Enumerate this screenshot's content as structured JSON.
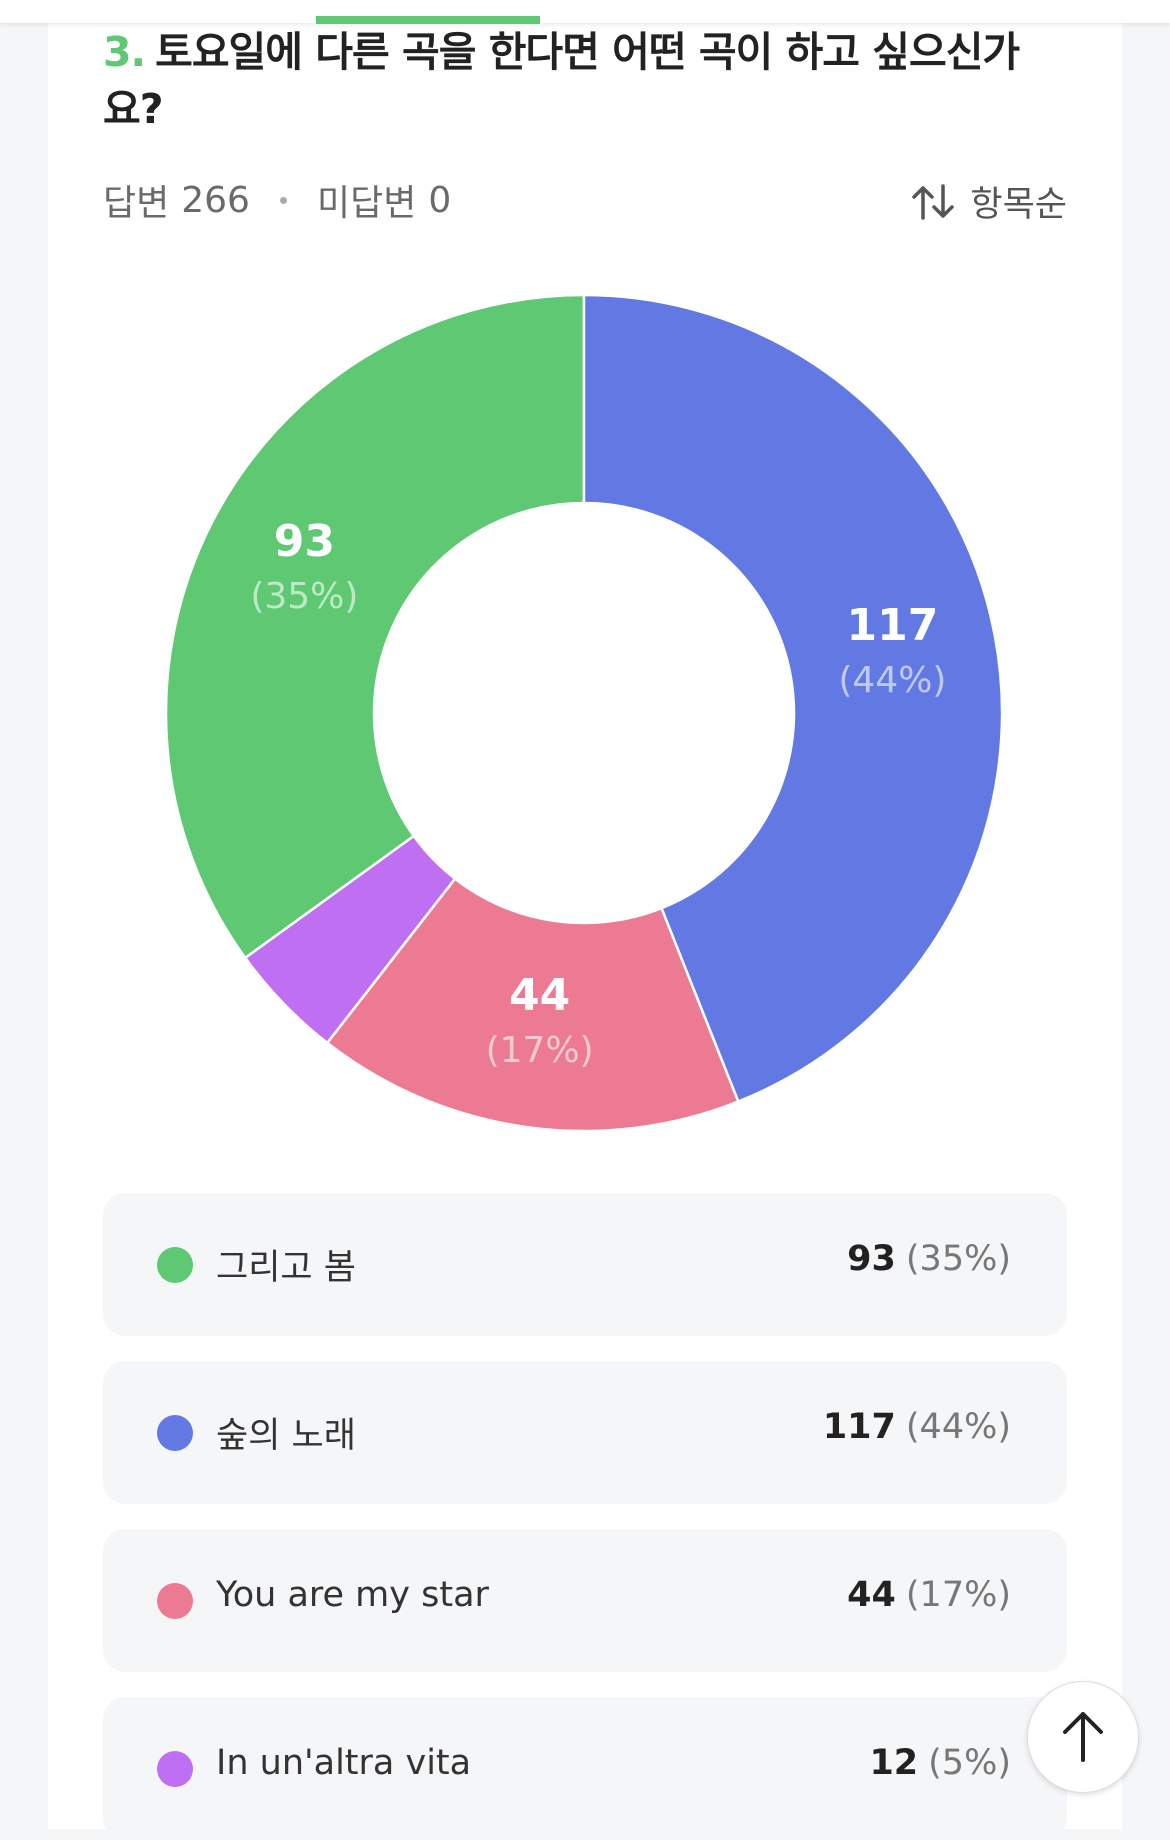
{
  "question": {
    "number": "3.",
    "title": "토요일에 다른 곡을 한다면 어떤 곡이 하고 싶으신가요?",
    "answered_label": "답변",
    "answered": 266,
    "unanswered_label": "미답변",
    "unanswered": 0,
    "sort_label": "항목순"
  },
  "chart_data": {
    "type": "donut",
    "categories": [
      "그리고 봄",
      "숲의 노래",
      "You are my star",
      "In un'altra vita"
    ],
    "values": [
      93,
      117,
      44,
      12
    ],
    "percents": [
      35,
      44,
      17,
      5
    ],
    "percent_labels": [
      "(35%)",
      "(44%)",
      "(17%)",
      "(5%)"
    ],
    "colors": [
      "#5ec872",
      "#6279e3",
      "#ec7a93",
      "#bf6ff1"
    ]
  }
}
